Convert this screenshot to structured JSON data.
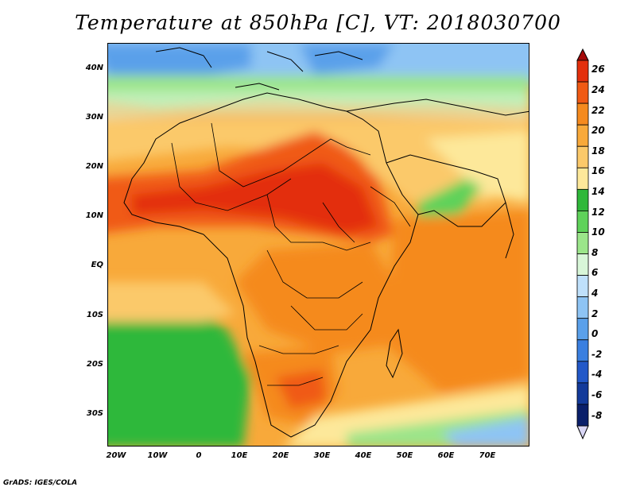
{
  "title": "Temperature at 850hPa [C], VT: 2018030700",
  "footer": "GrADS: IGES/COLA",
  "lat_labels": [
    "40N",
    "30N",
    "20N",
    "10N",
    "EQ",
    "10S",
    "20S",
    "30S"
  ],
  "lon_labels": [
    "20W",
    "10W",
    "0",
    "10E",
    "20E",
    "30E",
    "40E",
    "50E",
    "60E",
    "70E"
  ],
  "colorbar": {
    "levels": [
      "26",
      "24",
      "22",
      "20",
      "18",
      "16",
      "14",
      "12",
      "10",
      "8",
      "6",
      "4",
      "2",
      "0",
      "-2",
      "-4",
      "-6",
      "-8"
    ],
    "colors": [
      "#a50a0a",
      "#e32f0c",
      "#f05a14",
      "#f58a1e",
      "#f8a93a",
      "#fbc96a",
      "#fde89a",
      "#2fb83a",
      "#5fd25a",
      "#9be58a",
      "#d8f6d8",
      "#bfe0fb",
      "#8ec4f4",
      "#5aa0ea",
      "#3a7fe0",
      "#2258c8",
      "#133a9a",
      "#0a1f6a",
      "#d9d6f5"
    ]
  }
}
